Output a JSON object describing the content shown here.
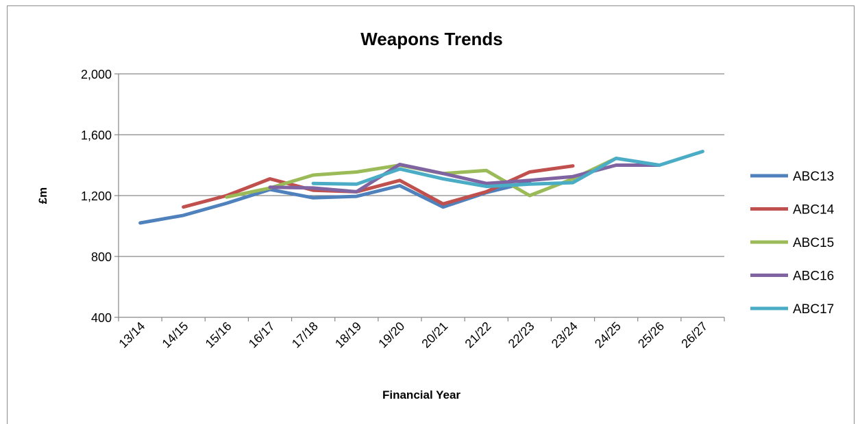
{
  "chart_data": {
    "type": "line",
    "title": "Weapons Trends",
    "xlabel": "Financial Year",
    "ylabel": "£m",
    "ylim": [
      400,
      2000
    ],
    "yticks": [
      400,
      800,
      1200,
      1600,
      2000
    ],
    "ytick_labels": [
      "400",
      "800",
      "1,200",
      "1,600",
      "2,000"
    ],
    "grid": "horizontal",
    "legend": "right",
    "categories": [
      "13/14",
      "14/15",
      "15/16",
      "16/17",
      "17/18",
      "18/19",
      "19/20",
      "20/21",
      "21/22",
      "22/23",
      "23/24",
      "24/25",
      "25/26",
      "26/27"
    ],
    "series": [
      {
        "name": "ABC13",
        "color": "#4f81bd",
        "values": [
          1020,
          1070,
          1150,
          1240,
          1185,
          1195,
          1265,
          1125,
          1220,
          1290,
          null,
          null,
          null,
          null
        ]
      },
      {
        "name": "ABC14",
        "color": "#c0504d",
        "values": [
          null,
          1125,
          1200,
          1310,
          1235,
          1225,
          1300,
          1145,
          1225,
          1355,
          1395,
          null,
          null,
          null
        ]
      },
      {
        "name": "ABC15",
        "color": "#9bbb59",
        "values": [
          null,
          null,
          1190,
          1250,
          1335,
          1355,
          1400,
          1345,
          1365,
          1200,
          1310,
          1445,
          null,
          null
        ]
      },
      {
        "name": "ABC16",
        "color": "#8064a2",
        "values": [
          null,
          null,
          null,
          1255,
          1250,
          1225,
          1405,
          1345,
          1280,
          1300,
          1325,
          1400,
          1400,
          null
        ]
      },
      {
        "name": "ABC17",
        "color": "#4bacc6",
        "values": [
          null,
          null,
          null,
          null,
          1280,
          1275,
          1375,
          1310,
          1260,
          1275,
          1285,
          1445,
          1400,
          1490
        ]
      }
    ]
  }
}
